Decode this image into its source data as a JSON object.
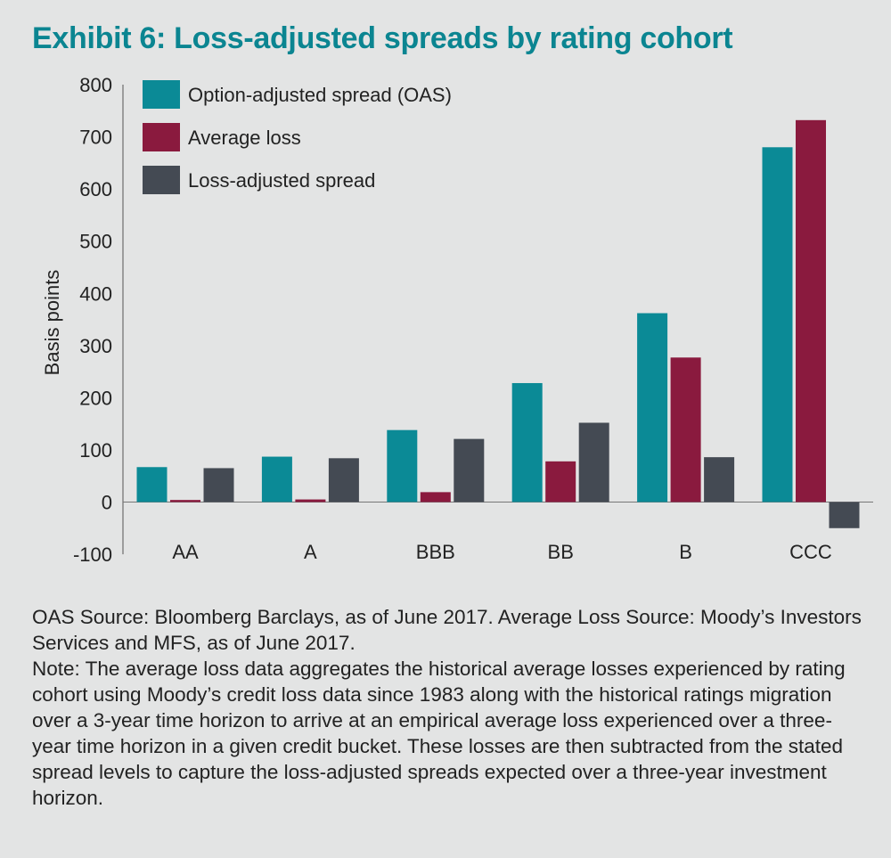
{
  "title": "Exhibit 6: Loss-adjusted spreads by rating cohort",
  "notes": {
    "source": "OAS Source: Bloomberg Barclays, as of June 2017. Average Loss Source: Moody’s Investors Services and MFS, as of June 2017.",
    "note": "Note: The average loss data aggregates the historical average losses experienced by rating cohort using Moody’s credit loss data since 1983 along with the historical ratings migration over a 3-year time horizon to arrive at an empirical average loss experienced over a three-year time horizon in a given credit bucket. These losses are then subtracted from the stated spread levels to capture the loss-adjusted spreads expected over a three-year investment horizon."
  },
  "chart_data": {
    "type": "bar",
    "title": "Exhibit 6: Loss-adjusted spreads by rating cohort",
    "xlabel": "",
    "ylabel": "Basis points",
    "ylim": [
      -100,
      800
    ],
    "yticks": [
      "800",
      "700",
      "600",
      "500",
      "400",
      "300",
      "200",
      "100",
      "0",
      "-100"
    ],
    "grid": false,
    "legend_position": "top-left",
    "categories": [
      "AA",
      "A",
      "BBB",
      "BB",
      "B",
      "CCC"
    ],
    "series": [
      {
        "name": "Option-adjusted spread (OAS)",
        "color": "#0b8a96",
        "values": [
          67,
          87,
          138,
          228,
          362,
          680
        ]
      },
      {
        "name": "Average loss",
        "color": "#8a1a3e",
        "values": [
          4,
          5,
          19,
          78,
          277,
          732
        ]
      },
      {
        "name": "Loss-adjusted spread",
        "color": "#444a53",
        "values": [
          65,
          84,
          121,
          152,
          86,
          -50
        ]
      }
    ]
  }
}
